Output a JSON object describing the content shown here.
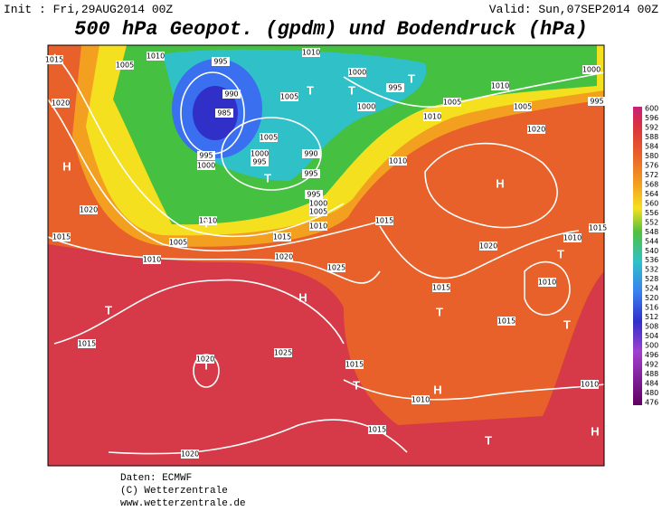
{
  "header": {
    "init": "Init : Fri,29AUG2014 00Z",
    "valid": "Valid: Sun,07SEP2014 00Z",
    "title": "500 hPa Geopot. (gpdm) und Bodendruck (hPa)"
  },
  "colorbar": {
    "ticks": [
      600,
      596,
      592,
      588,
      584,
      580,
      576,
      572,
      568,
      564,
      560,
      556,
      552,
      548,
      544,
      540,
      536,
      532,
      528,
      524,
      520,
      516,
      512,
      508,
      504,
      500,
      496,
      492,
      488,
      484,
      480,
      476
    ]
  },
  "isobar_labels": [
    1015,
    1005,
    1010,
    995,
    990,
    985,
    995,
    1000,
    1005,
    1010,
    1000,
    995,
    1000,
    1005,
    1000,
    995,
    990,
    995,
    995,
    1000,
    1005,
    1010,
    1020,
    1020,
    1010,
    1005,
    1010,
    1015,
    1015,
    1020,
    1025,
    1015,
    1010,
    1010,
    1005,
    1010,
    1005,
    1020,
    1000,
    995,
    1015,
    1010,
    1020,
    1015,
    1010,
    1015,
    1015,
    1025,
    1020,
    1015,
    1010,
    1010,
    1015,
    1020
  ],
  "pressure_centers": [
    "H",
    "T",
    "T",
    "T",
    "T",
    "T",
    "H",
    "T",
    "T",
    "H",
    "T",
    "T",
    "T",
    "T",
    "H",
    "T",
    "H"
  ],
  "footer": {
    "lines": [
      "Daten: ECMWF",
      "(C) Wetterzentrale",
      "www.wetterzentrale.de"
    ]
  }
}
